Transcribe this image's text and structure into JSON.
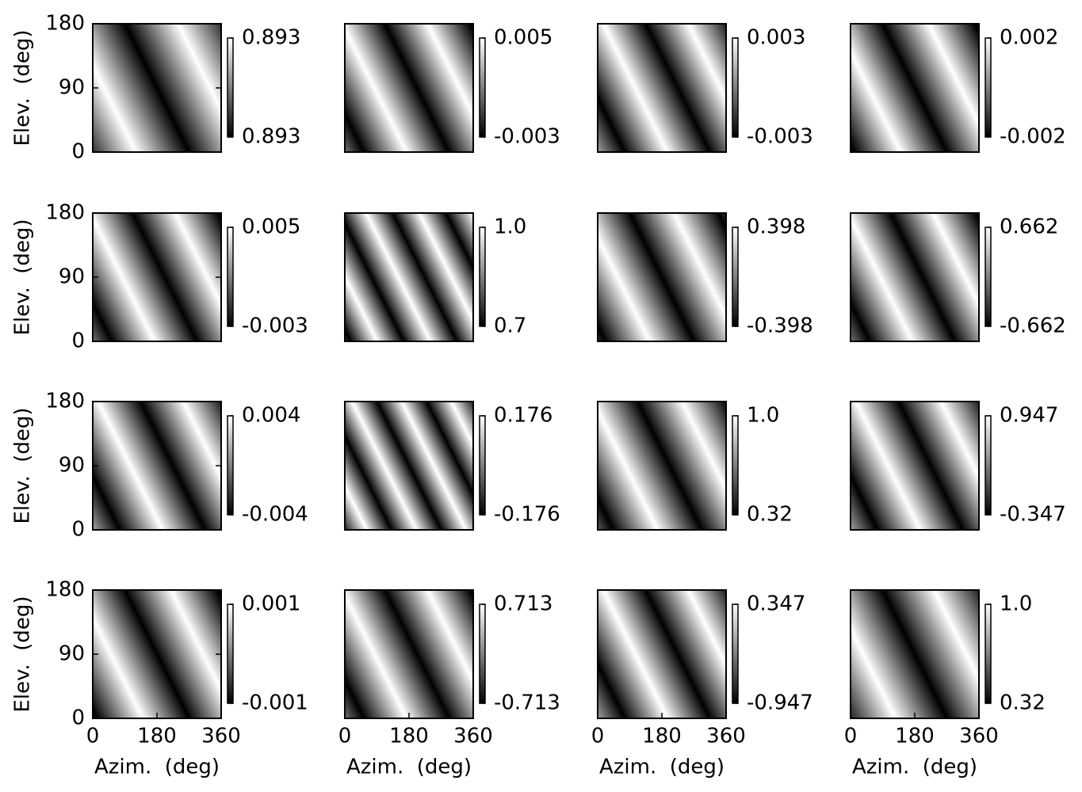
{
  "chart_data": [
    {
      "type": "heatmap",
      "xlim": [
        0,
        360
      ],
      "ylim": [
        0,
        180
      ],
      "yticks": [
        0,
        90,
        180
      ],
      "ylabel": "Elev.  (deg)",
      "cticks": [
        0.893,
        0.893
      ]
    },
    {
      "type": "heatmap",
      "xlim": [
        0,
        360
      ],
      "ylim": [
        0,
        180
      ],
      "cticks": [
        -0.003,
        0.005
      ]
    },
    {
      "type": "heatmap",
      "xlim": [
        0,
        360
      ],
      "ylim": [
        0,
        180
      ],
      "cticks": [
        -0.003,
        0.003
      ]
    },
    {
      "type": "heatmap",
      "xlim": [
        0,
        360
      ],
      "ylim": [
        0,
        180
      ],
      "cticks": [
        -0.002,
        0.002
      ]
    },
    {
      "type": "heatmap",
      "xlim": [
        0,
        360
      ],
      "ylim": [
        0,
        180
      ],
      "yticks": [
        0,
        90,
        180
      ],
      "ylabel": "Elev.  (deg)",
      "cticks": [
        -0.003,
        0.005
      ]
    },
    {
      "type": "heatmap",
      "xlim": [
        0,
        360
      ],
      "ylim": [
        0,
        180
      ],
      "cticks": [
        0.7,
        {
          "value": 1,
          "label": "1.0"
        }
      ]
    },
    {
      "type": "heatmap",
      "xlim": [
        0,
        360
      ],
      "ylim": [
        0,
        180
      ],
      "cticks": [
        -0.398,
        0.398
      ]
    },
    {
      "type": "heatmap",
      "xlim": [
        0,
        360
      ],
      "ylim": [
        0,
        180
      ],
      "cticks": [
        -0.662,
        0.662
      ]
    },
    {
      "type": "heatmap",
      "xlim": [
        0,
        360
      ],
      "ylim": [
        0,
        180
      ],
      "yticks": [
        0,
        90,
        180
      ],
      "ylabel": "Elev.  (deg)",
      "cticks": [
        -0.004,
        0.004
      ]
    },
    {
      "type": "heatmap",
      "xlim": [
        0,
        360
      ],
      "ylim": [
        0,
        180
      ],
      "cticks": [
        -0.176,
        0.176
      ]
    },
    {
      "type": "heatmap",
      "xlim": [
        0,
        360
      ],
      "ylim": [
        0,
        180
      ],
      "cticks": [
        0.32,
        {
          "value": 1,
          "label": "1.0"
        }
      ]
    },
    {
      "type": "heatmap",
      "xlim": [
        0,
        360
      ],
      "ylim": [
        0,
        180
      ],
      "cticks": [
        -0.347,
        0.947
      ]
    },
    {
      "type": "heatmap",
      "xlim": [
        0,
        360
      ],
      "ylim": [
        0,
        180
      ],
      "xticks": [
        0,
        180,
        360
      ],
      "yticks": [
        0,
        90,
        180
      ],
      "xlabel": "Azim.  (deg)",
      "ylabel": "Elev.  (deg)",
      "cticks": [
        -0.001,
        0.001
      ]
    },
    {
      "type": "heatmap",
      "xlim": [
        0,
        360
      ],
      "ylim": [
        0,
        180
      ],
      "xticks": [
        0,
        180,
        360
      ],
      "xlabel": "Azim.  (deg)",
      "cticks": [
        -0.713,
        0.713
      ]
    },
    {
      "type": "heatmap",
      "xlim": [
        0,
        360
      ],
      "ylim": [
        0,
        180
      ],
      "xticks": [
        0,
        180,
        360
      ],
      "xlabel": "Azim.  (deg)",
      "cticks": [
        -0.947,
        0.347
      ]
    },
    {
      "type": "heatmap",
      "xlim": [
        0,
        360
      ],
      "ylim": [
        0,
        180
      ],
      "xticks": [
        0,
        180,
        360
      ],
      "xlabel": "Azim.  (deg)",
      "cticks": [
        0.32,
        {
          "value": 1,
          "label": "1.0"
        }
      ]
    }
  ]
}
